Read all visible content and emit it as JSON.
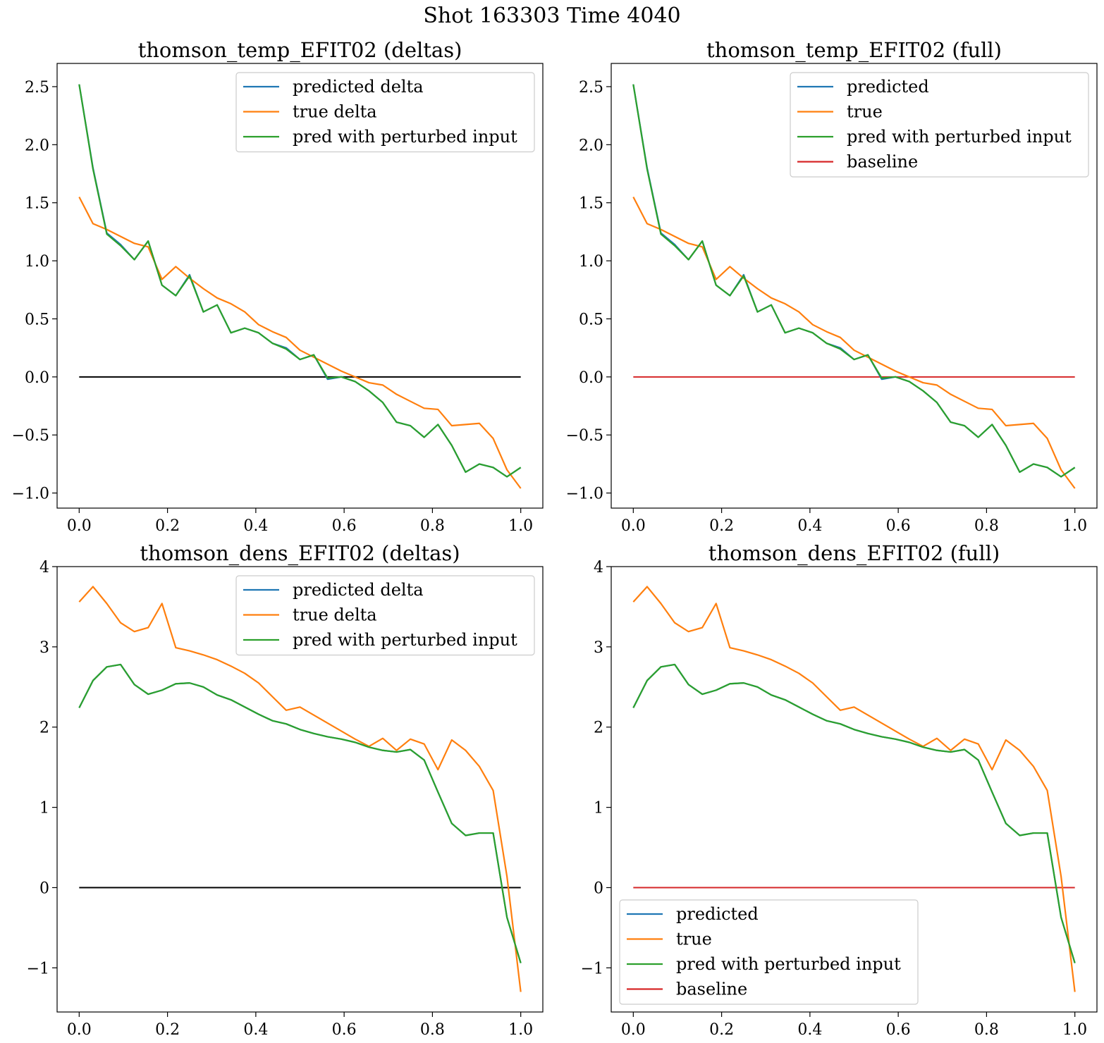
{
  "suptitle": "Shot 163303   Time 4040",
  "colors": {
    "predicted": "#1f77b4",
    "true": "#ff7f0e",
    "perturbed": "#2ca02c",
    "baseline": "#d62728",
    "zero": "#000000"
  },
  "chart_data": [
    {
      "type": "line",
      "title": "thomson_temp_EFIT02 (deltas)",
      "xlim": [
        -0.05,
        1.05
      ],
      "ylim": [
        -1.13,
        2.7
      ],
      "xticks": [
        0.0,
        0.2,
        0.4,
        0.6,
        0.8,
        1.0
      ],
      "xtick_labels": [
        "0.0",
        "0.2",
        "0.4",
        "0.6",
        "0.8",
        "1.0"
      ],
      "yticks": [
        -1.0,
        -0.5,
        0.0,
        0.5,
        1.0,
        1.5,
        2.0,
        2.5
      ],
      "ytick_labels": [
        "−1.0",
        "−0.5",
        "0.0",
        "0.5",
        "1.0",
        "1.5",
        "2.0",
        "2.5"
      ],
      "legend_loc": "upper right",
      "x": [
        0.0,
        0.03125,
        0.0625,
        0.09375,
        0.125,
        0.15625,
        0.1875,
        0.21875,
        0.25,
        0.28125,
        0.3125,
        0.34375,
        0.375,
        0.40625,
        0.4375,
        0.46875,
        0.5,
        0.53125,
        0.5625,
        0.59375,
        0.625,
        0.65625,
        0.6875,
        0.71875,
        0.75,
        0.78125,
        0.8125,
        0.84375,
        0.875,
        0.90625,
        0.9375,
        0.96875,
        1.0
      ],
      "series": [
        {
          "name": "predicted delta",
          "color_key": "predicted",
          "values": [
            2.52,
            1.8,
            1.24,
            1.14,
            1.01,
            1.17,
            0.79,
            0.7,
            0.88,
            0.56,
            0.62,
            0.38,
            0.42,
            0.38,
            0.29,
            0.25,
            0.15,
            0.19,
            -0.02,
            0.0,
            -0.04,
            -0.12,
            -0.22,
            -0.39,
            -0.42,
            -0.52,
            -0.41,
            -0.59,
            -0.82,
            -0.75,
            -0.78,
            -0.86,
            -0.78
          ]
        },
        {
          "name": "true delta",
          "color_key": "true",
          "values": [
            1.55,
            1.32,
            1.27,
            1.21,
            1.15,
            1.12,
            0.84,
            0.95,
            0.85,
            0.76,
            0.68,
            0.63,
            0.56,
            0.45,
            0.39,
            0.34,
            0.23,
            0.17,
            0.11,
            0.05,
            0.0,
            -0.05,
            -0.07,
            -0.15,
            -0.21,
            -0.27,
            -0.28,
            -0.42,
            -0.41,
            -0.4,
            -0.53,
            -0.8,
            -0.96
          ]
        },
        {
          "name": "pred with perturbed input",
          "color_key": "perturbed",
          "values": [
            2.52,
            1.79,
            1.23,
            1.13,
            1.01,
            1.17,
            0.79,
            0.7,
            0.87,
            0.56,
            0.62,
            0.38,
            0.42,
            0.38,
            0.29,
            0.24,
            0.15,
            0.19,
            -0.01,
            0.0,
            -0.04,
            -0.12,
            -0.22,
            -0.39,
            -0.42,
            -0.52,
            -0.41,
            -0.59,
            -0.82,
            -0.75,
            -0.78,
            -0.86,
            -0.78
          ]
        }
      ],
      "hline": {
        "y": 0,
        "x": [
          0.0,
          1.0
        ],
        "color_key": "zero",
        "in_legend": false
      }
    },
    {
      "type": "line",
      "title": "thomson_temp_EFIT02 (full)",
      "xlim": [
        -0.05,
        1.05
      ],
      "ylim": [
        -1.13,
        2.7
      ],
      "xticks": [
        0.0,
        0.2,
        0.4,
        0.6,
        0.8,
        1.0
      ],
      "xtick_labels": [
        "0.0",
        "0.2",
        "0.4",
        "0.6",
        "0.8",
        "1.0"
      ],
      "yticks": [
        -1.0,
        -0.5,
        0.0,
        0.5,
        1.0,
        1.5,
        2.0,
        2.5
      ],
      "ytick_labels": [
        "−1.0",
        "−0.5",
        "0.0",
        "0.5",
        "1.0",
        "1.5",
        "2.0",
        "2.5"
      ],
      "legend_loc": "upper right",
      "x": [
        0.0,
        0.03125,
        0.0625,
        0.09375,
        0.125,
        0.15625,
        0.1875,
        0.21875,
        0.25,
        0.28125,
        0.3125,
        0.34375,
        0.375,
        0.40625,
        0.4375,
        0.46875,
        0.5,
        0.53125,
        0.5625,
        0.59375,
        0.625,
        0.65625,
        0.6875,
        0.71875,
        0.75,
        0.78125,
        0.8125,
        0.84375,
        0.875,
        0.90625,
        0.9375,
        0.96875,
        1.0
      ],
      "series": [
        {
          "name": "predicted",
          "color_key": "predicted",
          "values": [
            2.52,
            1.8,
            1.24,
            1.14,
            1.01,
            1.17,
            0.79,
            0.7,
            0.88,
            0.56,
            0.62,
            0.38,
            0.42,
            0.38,
            0.29,
            0.25,
            0.15,
            0.19,
            -0.02,
            0.0,
            -0.04,
            -0.12,
            -0.22,
            -0.39,
            -0.42,
            -0.52,
            -0.41,
            -0.59,
            -0.82,
            -0.75,
            -0.78,
            -0.86,
            -0.78
          ]
        },
        {
          "name": "true",
          "color_key": "true",
          "values": [
            1.55,
            1.32,
            1.27,
            1.21,
            1.15,
            1.12,
            0.84,
            0.95,
            0.85,
            0.76,
            0.68,
            0.63,
            0.56,
            0.45,
            0.39,
            0.34,
            0.23,
            0.17,
            0.11,
            0.05,
            0.0,
            -0.05,
            -0.07,
            -0.15,
            -0.21,
            -0.27,
            -0.28,
            -0.42,
            -0.41,
            -0.4,
            -0.53,
            -0.8,
            -0.96
          ]
        },
        {
          "name": "pred with perturbed input",
          "color_key": "perturbed",
          "values": [
            2.52,
            1.79,
            1.23,
            1.13,
            1.01,
            1.17,
            0.79,
            0.7,
            0.87,
            0.56,
            0.62,
            0.38,
            0.42,
            0.38,
            0.29,
            0.24,
            0.15,
            0.19,
            -0.01,
            0.0,
            -0.04,
            -0.12,
            -0.22,
            -0.39,
            -0.42,
            -0.52,
            -0.41,
            -0.59,
            -0.82,
            -0.75,
            -0.78,
            -0.86,
            -0.78
          ]
        }
      ],
      "hline": {
        "y": 0,
        "x": [
          0.0,
          1.0
        ],
        "color_key": "baseline",
        "in_legend": true,
        "name": "baseline"
      }
    },
    {
      "type": "line",
      "title": "thomson_dens_EFIT02 (deltas)",
      "xlim": [
        -0.05,
        1.05
      ],
      "ylim": [
        -1.55,
        4.0
      ],
      "xticks": [
        0.0,
        0.2,
        0.4,
        0.6,
        0.8,
        1.0
      ],
      "xtick_labels": [
        "0.0",
        "0.2",
        "0.4",
        "0.6",
        "0.8",
        "1.0"
      ],
      "yticks": [
        -1,
        0,
        1,
        2,
        3,
        4
      ],
      "ytick_labels": [
        "−1",
        "0",
        "1",
        "2",
        "3",
        "4"
      ],
      "legend_loc": "upper right",
      "x": [
        0.0,
        0.03125,
        0.0625,
        0.09375,
        0.125,
        0.15625,
        0.1875,
        0.21875,
        0.25,
        0.28125,
        0.3125,
        0.34375,
        0.375,
        0.40625,
        0.4375,
        0.46875,
        0.5,
        0.53125,
        0.5625,
        0.59375,
        0.625,
        0.65625,
        0.6875,
        0.71875,
        0.75,
        0.78125,
        0.8125,
        0.84375,
        0.875,
        0.90625,
        0.9375,
        0.96875,
        1.0
      ],
      "series": [
        {
          "name": "predicted delta",
          "color_key": "predicted",
          "values": [
            2.24,
            2.58,
            2.75,
            2.78,
            2.53,
            2.41,
            2.46,
            2.54,
            2.55,
            2.5,
            2.4,
            2.34,
            2.25,
            2.16,
            2.08,
            2.04,
            1.97,
            1.92,
            1.88,
            1.85,
            1.81,
            1.75,
            1.71,
            1.69,
            1.72,
            1.59,
            1.19,
            0.8,
            0.65,
            0.68,
            0.68,
            -0.37,
            -0.94
          ]
        },
        {
          "name": "true delta",
          "color_key": "true",
          "values": [
            3.56,
            3.75,
            3.54,
            3.3,
            3.19,
            3.24,
            3.54,
            2.99,
            2.95,
            2.9,
            2.84,
            2.76,
            2.67,
            2.55,
            2.38,
            2.21,
            2.25,
            2.15,
            2.05,
            1.95,
            1.85,
            1.76,
            1.86,
            1.71,
            1.85,
            1.79,
            1.47,
            1.84,
            1.71,
            1.51,
            1.21,
            0.14,
            -1.3
          ]
        },
        {
          "name": "pred with perturbed input",
          "color_key": "perturbed",
          "values": [
            2.24,
            2.58,
            2.75,
            2.78,
            2.53,
            2.41,
            2.46,
            2.54,
            2.55,
            2.5,
            2.4,
            2.34,
            2.25,
            2.16,
            2.08,
            2.04,
            1.97,
            1.92,
            1.88,
            1.85,
            1.81,
            1.75,
            1.71,
            1.69,
            1.72,
            1.59,
            1.19,
            0.8,
            0.65,
            0.68,
            0.68,
            -0.37,
            -0.94
          ]
        }
      ],
      "hline": {
        "y": 0,
        "x": [
          0.0,
          1.0
        ],
        "color_key": "zero",
        "in_legend": false
      }
    },
    {
      "type": "line",
      "title": "thomson_dens_EFIT02 (full)",
      "xlim": [
        -0.05,
        1.05
      ],
      "ylim": [
        -1.55,
        4.0
      ],
      "xticks": [
        0.0,
        0.2,
        0.4,
        0.6,
        0.8,
        1.0
      ],
      "xtick_labels": [
        "0.0",
        "0.2",
        "0.4",
        "0.6",
        "0.8",
        "1.0"
      ],
      "yticks": [
        -1,
        0,
        1,
        2,
        3,
        4
      ],
      "ytick_labels": [
        "−1",
        "0",
        "1",
        "2",
        "3",
        "4"
      ],
      "legend_loc": "lower left",
      "x": [
        0.0,
        0.03125,
        0.0625,
        0.09375,
        0.125,
        0.15625,
        0.1875,
        0.21875,
        0.25,
        0.28125,
        0.3125,
        0.34375,
        0.375,
        0.40625,
        0.4375,
        0.46875,
        0.5,
        0.53125,
        0.5625,
        0.59375,
        0.625,
        0.65625,
        0.6875,
        0.71875,
        0.75,
        0.78125,
        0.8125,
        0.84375,
        0.875,
        0.90625,
        0.9375,
        0.96875,
        1.0
      ],
      "series": [
        {
          "name": "predicted",
          "color_key": "predicted",
          "values": [
            2.24,
            2.58,
            2.75,
            2.78,
            2.53,
            2.41,
            2.46,
            2.54,
            2.55,
            2.5,
            2.4,
            2.34,
            2.25,
            2.16,
            2.08,
            2.04,
            1.97,
            1.92,
            1.88,
            1.85,
            1.81,
            1.75,
            1.71,
            1.69,
            1.72,
            1.59,
            1.19,
            0.8,
            0.65,
            0.68,
            0.68,
            -0.37,
            -0.94
          ]
        },
        {
          "name": "true",
          "color_key": "true",
          "values": [
            3.56,
            3.75,
            3.54,
            3.3,
            3.19,
            3.24,
            3.54,
            2.99,
            2.95,
            2.9,
            2.84,
            2.76,
            2.67,
            2.55,
            2.38,
            2.21,
            2.25,
            2.15,
            2.05,
            1.95,
            1.85,
            1.76,
            1.86,
            1.71,
            1.85,
            1.79,
            1.47,
            1.84,
            1.71,
            1.51,
            1.21,
            0.14,
            -1.3
          ]
        },
        {
          "name": "pred with perturbed input",
          "color_key": "perturbed",
          "values": [
            2.24,
            2.58,
            2.75,
            2.78,
            2.53,
            2.41,
            2.46,
            2.54,
            2.55,
            2.5,
            2.4,
            2.34,
            2.25,
            2.16,
            2.08,
            2.04,
            1.97,
            1.92,
            1.88,
            1.85,
            1.81,
            1.75,
            1.71,
            1.69,
            1.72,
            1.59,
            1.19,
            0.8,
            0.65,
            0.68,
            0.68,
            -0.37,
            -0.94
          ]
        }
      ],
      "hline": {
        "y": 0,
        "x": [
          0.0,
          1.0
        ],
        "color_key": "baseline",
        "in_legend": true,
        "name": "baseline"
      }
    }
  ]
}
